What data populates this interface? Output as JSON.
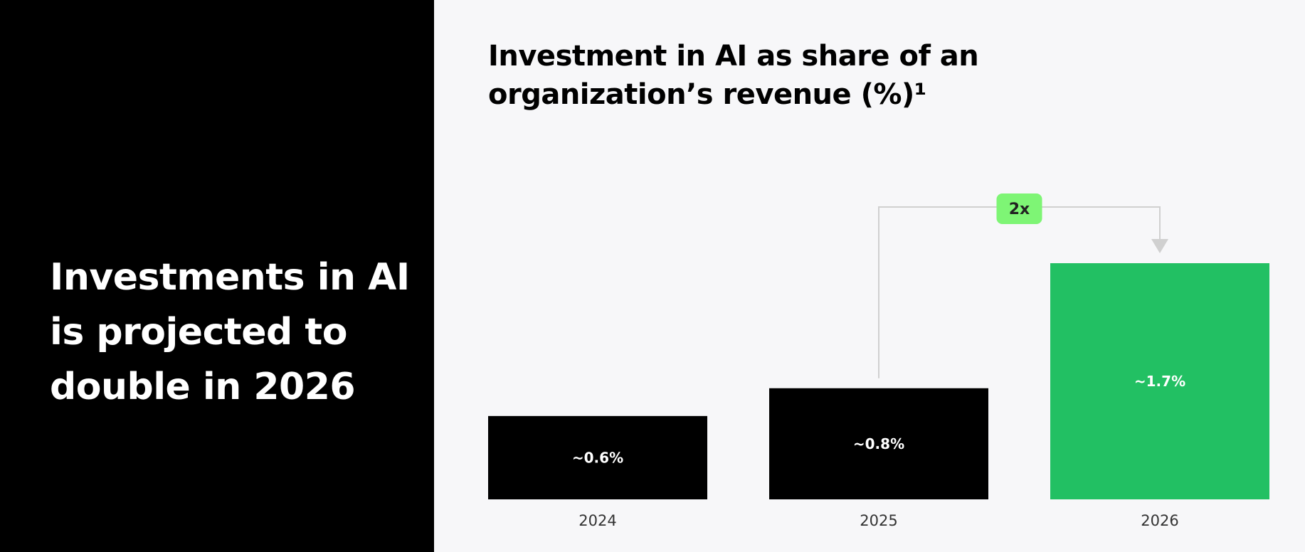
{
  "headline": "Investments in AI is projected to double in 2026",
  "chart_data": {
    "type": "bar",
    "title": "Investment in AI as share of an organization’s revenue (%)¹",
    "xlabel": "",
    "ylabel": "",
    "categories": [
      "2024",
      "2025",
      "2026"
    ],
    "values": [
      0.6,
      0.8,
      1.7
    ],
    "data_labels": [
      "~0.6%",
      "~0.8%",
      "~1.7%"
    ],
    "ylim": [
      0,
      1.7
    ],
    "grid": false,
    "bar_colors": [
      "#000000",
      "#000000",
      "#22c063"
    ],
    "annotation": {
      "text": "2x",
      "from": "2025",
      "to": "2026",
      "badge_color": "#7ef575",
      "line_color": "#d0d0d0"
    }
  },
  "colors": {
    "left_panel": "#000000",
    "background": "#f7f7f9",
    "accent": "#22c063"
  }
}
